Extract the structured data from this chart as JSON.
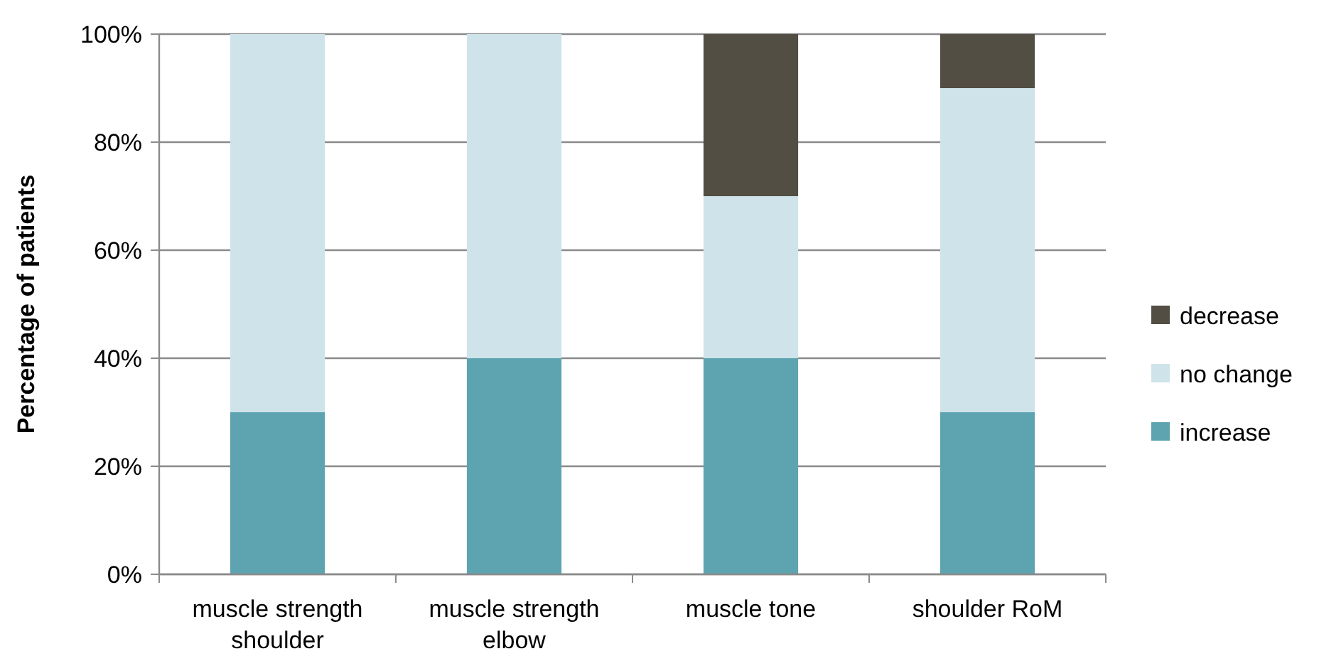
{
  "chart_data": {
    "type": "bar",
    "stacked": true,
    "ylabel": "Percentage of patients",
    "categories": [
      "muscle strength shoulder",
      "muscle strength elbow",
      "muscle tone",
      "shoulder RoM"
    ],
    "series": [
      {
        "name": "increase",
        "color": "#5ea3b0",
        "values": [
          30,
          40,
          40,
          30
        ]
      },
      {
        "name": "no change",
        "color": "#cfe3ea",
        "values": [
          70,
          60,
          30,
          60
        ]
      },
      {
        "name": "decrease",
        "color": "#524e43",
        "values": [
          0,
          0,
          30,
          10
        ]
      }
    ],
    "ylim": [
      0,
      100
    ],
    "yticks": [
      {
        "value": 0,
        "label": "0%"
      },
      {
        "value": 20,
        "label": "20%"
      },
      {
        "value": 40,
        "label": "40%"
      },
      {
        "value": 60,
        "label": "60%"
      },
      {
        "value": 80,
        "label": "80%"
      },
      {
        "value": 100,
        "label": "100%"
      }
    ],
    "grid": "y",
    "legend": "right"
  }
}
